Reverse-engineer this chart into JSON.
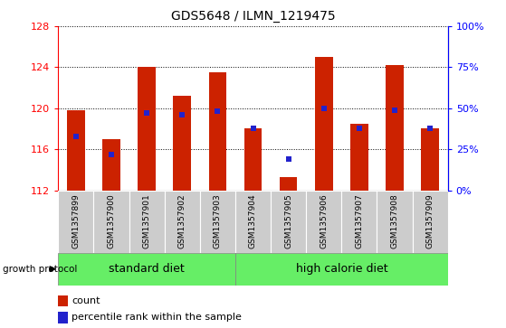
{
  "title": "GDS5648 / ILMN_1219475",
  "samples": [
    "GSM1357899",
    "GSM1357900",
    "GSM1357901",
    "GSM1357902",
    "GSM1357903",
    "GSM1357904",
    "GSM1357905",
    "GSM1357906",
    "GSM1357907",
    "GSM1357908",
    "GSM1357909"
  ],
  "count_values": [
    119.8,
    117.0,
    124.0,
    121.2,
    123.5,
    118.0,
    113.3,
    125.0,
    118.5,
    124.2,
    118.0
  ],
  "percentile_values": [
    33,
    22,
    47,
    46,
    48,
    38,
    19,
    50,
    38,
    49,
    38
  ],
  "y_min": 112,
  "y_max": 128,
  "y_ticks": [
    112,
    116,
    120,
    124,
    128
  ],
  "right_y_ticks": [
    0,
    25,
    50,
    75,
    100
  ],
  "right_y_labels": [
    "0%",
    "25%",
    "50%",
    "75%",
    "100%"
  ],
  "bar_color": "#cc2200",
  "percentile_color": "#2222cc",
  "standard_diet_indices": [
    0,
    1,
    2,
    3,
    4
  ],
  "high_calorie_indices": [
    5,
    6,
    7,
    8,
    9,
    10
  ],
  "standard_diet_label": "standard diet",
  "high_calorie_label": "high calorie diet",
  "growth_protocol_label": "growth protocol",
  "group_color": "#66ee66",
  "tick_bg_color": "#cccccc",
  "count_legend": "count",
  "percentile_legend": "percentile rank within the sample",
  "fig_width": 5.59,
  "fig_height": 3.63,
  "dpi": 100
}
